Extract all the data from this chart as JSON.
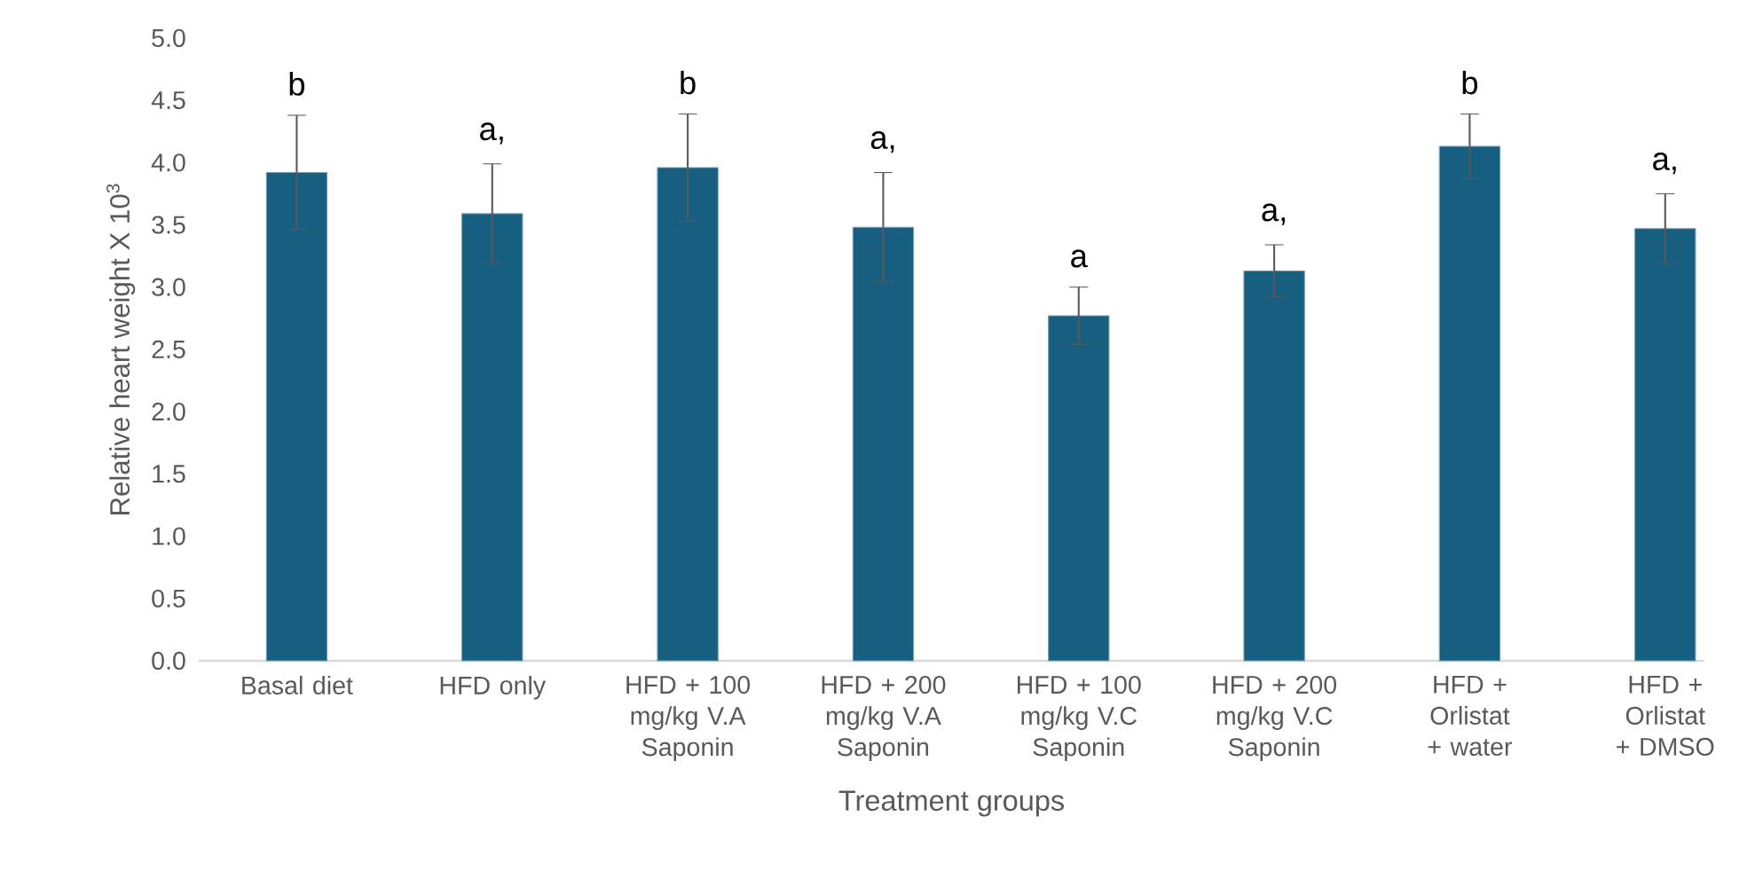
{
  "chart_data": {
    "type": "bar",
    "xlabel": "Treatment groups",
    "ylabel": "Relative heart weight X 10$^{3}$",
    "categories": [
      "Basal diet",
      "HFD only",
      "HFD + 100 mg/kg V.A Saponin",
      "HFD + 200 mg/kg V.A Saponin",
      "HFD + 100 mg/kg V.C Saponin",
      "HFD + 200 mg/kg V.C Saponin",
      "HFD + Orlistat + water",
      "HFD + Orlistat + DMSO"
    ],
    "values": [
      3.92,
      3.59,
      3.96,
      3.48,
      2.77,
      3.13,
      4.13,
      3.47
    ],
    "errors": [
      0.46,
      0.4,
      0.43,
      0.44,
      0.23,
      0.21,
      0.26,
      0.28
    ],
    "color": "#175f81",
    "ylim": [
      0,
      5
    ],
    "yticks": [
      {
        "value": 0,
        "label": "0.0"
      },
      {
        "value": 0.5,
        "label": "0.5"
      },
      {
        "value": 1,
        "label": "1.0"
      },
      {
        "value": 1.5,
        "label": "1.5"
      },
      {
        "value": 2,
        "label": "2.0"
      },
      {
        "value": 2.5,
        "label": "2.5"
      },
      {
        "value": 3,
        "label": "3.0"
      },
      {
        "value": 3.5,
        "label": "3.5"
      },
      {
        "value": 4,
        "label": "4.0"
      },
      {
        "value": 4.5,
        "label": "4.5"
      },
      {
        "value": 5,
        "label": "5.0"
      }
    ],
    "annotations": [
      "b",
      "a,",
      "b",
      "a,",
      "a",
      "a,",
      "b",
      "a,"
    ]
  }
}
